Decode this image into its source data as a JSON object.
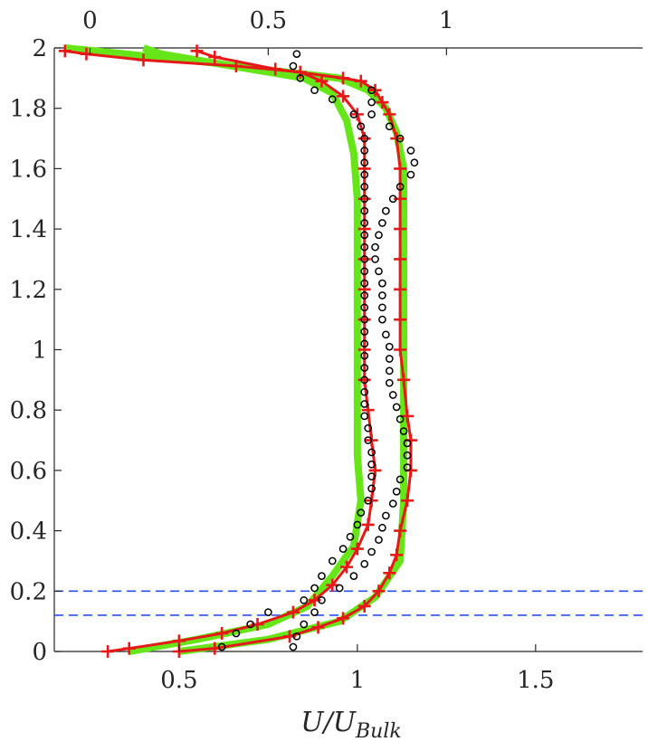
{
  "chart_data": {
    "type": "line",
    "title": "",
    "xlabel": "U/U",
    "xlabel_subscript": "Bulk",
    "ylabel": "",
    "xlim": [
      0.15,
      1.8
    ],
    "ylim": [
      0,
      2
    ],
    "top_axis_lim": [
      -0.1,
      1.55
    ],
    "x_ticks": [
      0.5,
      1,
      1.5
    ],
    "x_tick_labels": [
      "0.5",
      "1",
      "1.5"
    ],
    "top_ticks": [
      0,
      0.5,
      1
    ],
    "top_tick_labels": [
      "0",
      "0.5",
      "1"
    ],
    "y_ticks": [
      0,
      0.2,
      0.4,
      0.6,
      0.8,
      1,
      1.2,
      1.4,
      1.6,
      1.8,
      2
    ],
    "y_tick_labels": [
      "0",
      "0.2",
      "0.4",
      "0.6",
      "0.8",
      "1",
      "1.2",
      "1.4",
      "1.6",
      "1.8",
      "2"
    ],
    "grid": false,
    "hlines": [
      {
        "y": 0.2,
        "color": "#2b4ff5",
        "style": "dashed"
      },
      {
        "y": 0.12,
        "color": "#2b4ff5",
        "style": "dashed"
      }
    ],
    "series": [
      {
        "style": "thick-line",
        "color": "#66e619",
        "axis": "bottom",
        "points": [
          [
            0.36,
            0.0
          ],
          [
            0.55,
            0.04
          ],
          [
            0.75,
            0.09
          ],
          [
            0.86,
            0.15
          ],
          [
            0.93,
            0.25
          ],
          [
            0.99,
            0.35
          ],
          [
            1.01,
            0.5
          ],
          [
            1.0,
            0.65
          ],
          [
            1.0,
            0.9
          ],
          [
            1.0,
            1.1
          ],
          [
            1.0,
            1.3
          ],
          [
            1.0,
            1.5
          ],
          [
            0.99,
            1.65
          ],
          [
            0.97,
            1.76
          ],
          [
            0.93,
            1.85
          ],
          [
            0.85,
            1.9
          ],
          [
            0.6,
            1.95
          ],
          [
            0.18,
            2.0
          ]
        ]
      },
      {
        "style": "line-plus",
        "color": "#e61919",
        "axis": "bottom",
        "points": [
          [
            0.3,
            0.0
          ],
          [
            0.36,
            0.01
          ],
          [
            0.5,
            0.035
          ],
          [
            0.62,
            0.06
          ],
          [
            0.72,
            0.09
          ],
          [
            0.82,
            0.13
          ],
          [
            0.88,
            0.17
          ],
          [
            0.93,
            0.22
          ],
          [
            0.97,
            0.28
          ],
          [
            1.0,
            0.34
          ],
          [
            1.03,
            0.42
          ],
          [
            1.04,
            0.5
          ],
          [
            1.05,
            0.6
          ],
          [
            1.04,
            0.7
          ],
          [
            1.03,
            0.8
          ],
          [
            1.02,
            0.9
          ],
          [
            1.02,
            1.0
          ],
          [
            1.02,
            1.1
          ],
          [
            1.02,
            1.2
          ],
          [
            1.02,
            1.3
          ],
          [
            1.02,
            1.4
          ],
          [
            1.02,
            1.5
          ],
          [
            1.02,
            1.6
          ],
          [
            1.02,
            1.7
          ],
          [
            1.0,
            1.78
          ],
          [
            0.96,
            1.84
          ],
          [
            0.9,
            1.89
          ],
          [
            0.84,
            1.92
          ],
          [
            0.66,
            1.94
          ],
          [
            0.4,
            1.96
          ],
          [
            0.24,
            1.98
          ],
          [
            0.18,
            1.99
          ]
        ]
      },
      {
        "style": "circles",
        "color": "#000000",
        "axis": "bottom",
        "points": [
          [
            0.62,
            0.015
          ],
          [
            0.66,
            0.06
          ],
          [
            0.7,
            0.09
          ],
          [
            0.75,
            0.13
          ],
          [
            0.85,
            0.17
          ],
          [
            0.88,
            0.21
          ],
          [
            0.9,
            0.25
          ],
          [
            0.93,
            0.3
          ],
          [
            0.96,
            0.34
          ],
          [
            0.98,
            0.38
          ],
          [
            1.0,
            0.42
          ],
          [
            1.01,
            0.46
          ],
          [
            1.03,
            0.5
          ],
          [
            1.04,
            0.54
          ],
          [
            1.04,
            0.58
          ],
          [
            1.04,
            0.62
          ],
          [
            1.04,
            0.66
          ],
          [
            1.03,
            0.7
          ],
          [
            1.03,
            0.74
          ],
          [
            1.02,
            0.78
          ],
          [
            1.02,
            0.82
          ],
          [
            1.02,
            0.86
          ],
          [
            1.02,
            0.9
          ],
          [
            1.02,
            0.94
          ],
          [
            1.02,
            0.98
          ],
          [
            1.02,
            1.02
          ],
          [
            1.02,
            1.06
          ],
          [
            1.02,
            1.1
          ],
          [
            1.02,
            1.14
          ],
          [
            1.02,
            1.18
          ],
          [
            1.02,
            1.22
          ],
          [
            1.02,
            1.26
          ],
          [
            1.02,
            1.3
          ],
          [
            1.02,
            1.34
          ],
          [
            1.02,
            1.38
          ],
          [
            1.02,
            1.42
          ],
          [
            1.02,
            1.46
          ],
          [
            1.02,
            1.5
          ],
          [
            1.02,
            1.54
          ],
          [
            1.02,
            1.58
          ],
          [
            1.02,
            1.62
          ],
          [
            1.02,
            1.66
          ],
          [
            1.02,
            1.7
          ],
          [
            1.01,
            1.74
          ],
          [
            0.99,
            1.78
          ],
          [
            0.93,
            1.83
          ],
          [
            0.88,
            1.86
          ],
          [
            0.84,
            1.9
          ],
          [
            0.82,
            1.94
          ],
          [
            0.83,
            1.98
          ]
        ]
      },
      {
        "style": "thick-line",
        "color": "#66e619",
        "axis": "top",
        "points": [
          [
            0.25,
            0.0
          ],
          [
            0.5,
            0.04
          ],
          [
            0.7,
            0.1
          ],
          [
            0.8,
            0.18
          ],
          [
            0.87,
            0.3
          ],
          [
            0.88,
            0.5
          ],
          [
            0.88,
            0.7
          ],
          [
            0.88,
            0.9
          ],
          [
            0.88,
            1.1
          ],
          [
            0.88,
            1.3
          ],
          [
            0.88,
            1.5
          ],
          [
            0.88,
            1.6
          ],
          [
            0.86,
            1.72
          ],
          [
            0.83,
            1.8
          ],
          [
            0.78,
            1.86
          ],
          [
            0.7,
            1.9
          ],
          [
            0.4,
            1.94
          ],
          [
            0.2,
            1.98
          ],
          [
            0.15,
            2.0
          ]
        ]
      },
      {
        "style": "line-plus",
        "color": "#e61919",
        "axis": "top",
        "points": [
          [
            0.25,
            0.0
          ],
          [
            0.35,
            0.01
          ],
          [
            0.56,
            0.05
          ],
          [
            0.64,
            0.08
          ],
          [
            0.71,
            0.11
          ],
          [
            0.77,
            0.15
          ],
          [
            0.81,
            0.2
          ],
          [
            0.84,
            0.26
          ],
          [
            0.86,
            0.32
          ],
          [
            0.87,
            0.4
          ],
          [
            0.89,
            0.5
          ],
          [
            0.9,
            0.6
          ],
          [
            0.9,
            0.7
          ],
          [
            0.89,
            0.78
          ],
          [
            0.88,
            0.9
          ],
          [
            0.87,
            1.0
          ],
          [
            0.87,
            1.1
          ],
          [
            0.87,
            1.2
          ],
          [
            0.87,
            1.3
          ],
          [
            0.87,
            1.4
          ],
          [
            0.87,
            1.5
          ],
          [
            0.87,
            1.6
          ],
          [
            0.86,
            1.7
          ],
          [
            0.84,
            1.78
          ],
          [
            0.82,
            1.82
          ],
          [
            0.8,
            1.86
          ],
          [
            0.76,
            1.89
          ],
          [
            0.71,
            1.9
          ],
          [
            0.52,
            1.93
          ],
          [
            0.35,
            1.97
          ],
          [
            0.3,
            1.99
          ]
        ]
      },
      {
        "style": "circles",
        "color": "#000000",
        "axis": "top",
        "points": [
          [
            0.57,
            0.015
          ],
          [
            0.58,
            0.05
          ],
          [
            0.6,
            0.09
          ],
          [
            0.63,
            0.13
          ],
          [
            0.65,
            0.17
          ],
          [
            0.7,
            0.21
          ],
          [
            0.74,
            0.25
          ],
          [
            0.77,
            0.29
          ],
          [
            0.79,
            0.33
          ],
          [
            0.81,
            0.37
          ],
          [
            0.82,
            0.41
          ],
          [
            0.83,
            0.45
          ],
          [
            0.85,
            0.49
          ],
          [
            0.86,
            0.53
          ],
          [
            0.87,
            0.57
          ],
          [
            0.89,
            0.61
          ],
          [
            0.89,
            0.65
          ],
          [
            0.89,
            0.69
          ],
          [
            0.88,
            0.73
          ],
          [
            0.87,
            0.77
          ],
          [
            0.86,
            0.81
          ],
          [
            0.85,
            0.85
          ],
          [
            0.84,
            0.89
          ],
          [
            0.84,
            0.93
          ],
          [
            0.84,
            0.97
          ],
          [
            0.84,
            1.01
          ],
          [
            0.83,
            1.05
          ],
          [
            0.82,
            1.1
          ],
          [
            0.82,
            1.14
          ],
          [
            0.82,
            1.18
          ],
          [
            0.82,
            1.22
          ],
          [
            0.81,
            1.26
          ],
          [
            0.8,
            1.3
          ],
          [
            0.8,
            1.34
          ],
          [
            0.81,
            1.38
          ],
          [
            0.82,
            1.42
          ],
          [
            0.83,
            1.46
          ],
          [
            0.85,
            1.5
          ],
          [
            0.87,
            1.54
          ],
          [
            0.9,
            1.58
          ],
          [
            0.91,
            1.62
          ],
          [
            0.9,
            1.66
          ],
          [
            0.87,
            1.7
          ],
          [
            0.84,
            1.74
          ],
          [
            0.79,
            1.78
          ],
          [
            0.79,
            1.82
          ],
          [
            0.79,
            1.86
          ]
        ]
      }
    ]
  }
}
